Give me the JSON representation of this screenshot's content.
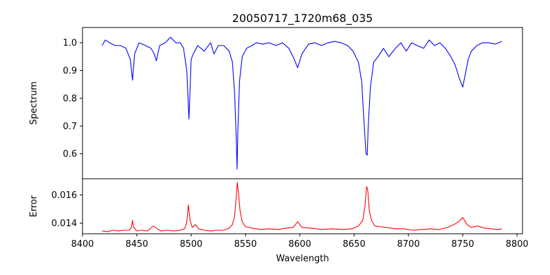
{
  "chart_data": [
    {
      "type": "line",
      "title": "20050717_1720m68_035",
      "xlabel": "",
      "ylabel": "Spectrum",
      "xlim": [
        8400,
        8805
      ],
      "ylim": [
        0.51,
        1.055
      ],
      "xticks": [
        8400,
        8450,
        8500,
        8550,
        8600,
        8650,
        8700,
        8750,
        8800
      ],
      "yticks": [
        0.6,
        0.7,
        0.8,
        0.9,
        1.0
      ],
      "ytick_labels": [
        "0.6",
        "0.7",
        "0.8",
        "0.9",
        "1.0"
      ],
      "grid": false,
      "color": "#0000ff",
      "x": [
        8418,
        8421,
        8425,
        8430,
        8435,
        8440,
        8444,
        8446,
        8448,
        8452,
        8458,
        8463,
        8466,
        8468,
        8471,
        8476,
        8481,
        8486,
        8490,
        8493,
        8496,
        8498,
        8500,
        8502,
        8506,
        8512,
        8518,
        8521,
        8525,
        8530,
        8535,
        8538,
        8540,
        8541.5,
        8542.3,
        8543,
        8544.5,
        8547,
        8551,
        8556,
        8560,
        8566,
        8572,
        8578,
        8584,
        8590,
        8595,
        8598,
        8602,
        8608,
        8614,
        8620,
        8626,
        8632,
        8638,
        8644,
        8649,
        8654,
        8657,
        8659,
        8661,
        8662.1,
        8663,
        8665,
        8668,
        8672,
        8677,
        8682,
        8688,
        8693,
        8698,
        8703,
        8708,
        8714,
        8719,
        8724,
        8729,
        8734,
        8739,
        8743,
        8747,
        8750,
        8752,
        8755,
        8758,
        8763,
        8768,
        8774,
        8780,
        8786
      ],
      "values": [
        0.99,
        1.01,
        1.0,
        0.99,
        0.99,
        0.98,
        0.94,
        0.865,
        0.96,
        1.0,
        0.99,
        0.98,
        0.96,
        0.935,
        0.99,
        1.0,
        1.02,
        1.0,
        1.0,
        0.98,
        0.9,
        0.725,
        0.94,
        0.96,
        0.99,
        0.97,
        1.0,
        0.96,
        0.99,
        0.99,
        0.97,
        0.93,
        0.82,
        0.66,
        0.545,
        0.68,
        0.86,
        0.95,
        0.98,
        0.99,
        1.0,
        0.995,
        1.0,
        0.99,
        1.0,
        0.98,
        0.94,
        0.91,
        0.96,
        0.995,
        1.0,
        0.99,
        1.0,
        1.005,
        1.0,
        0.99,
        0.97,
        0.93,
        0.86,
        0.72,
        0.6,
        0.595,
        0.7,
        0.84,
        0.93,
        0.95,
        0.98,
        0.95,
        0.98,
        1.0,
        0.97,
        1.0,
        0.99,
        0.98,
        1.01,
        0.99,
        1.0,
        0.98,
        0.95,
        0.92,
        0.87,
        0.84,
        0.88,
        0.94,
        0.97,
        0.99,
        1.0,
        1.0,
        0.995,
        1.005
      ]
    },
    {
      "type": "line",
      "title": "",
      "xlabel": "Wavelength",
      "ylabel": "Error",
      "xlim": [
        8400,
        8805
      ],
      "ylim": [
        0.01325,
        0.01715
      ],
      "xticks": [
        8400,
        8450,
        8500,
        8550,
        8600,
        8650,
        8700,
        8750,
        8800
      ],
      "yticks": [
        0.014,
        0.016
      ],
      "ytick_labels": [
        "0.014",
        "0.016"
      ],
      "grid": false,
      "color": "#ff0000",
      "x": [
        8418,
        8423,
        8428,
        8433,
        8438,
        8443,
        8445,
        8446,
        8447,
        8450,
        8455,
        8460,
        8465,
        8468,
        8472,
        8478,
        8484,
        8490,
        8494,
        8496,
        8497.5,
        8499,
        8501,
        8504,
        8507,
        8512,
        8518,
        8524,
        8530,
        8535,
        8538,
        8540,
        8541.5,
        8542.5,
        8543.5,
        8545,
        8547,
        8550,
        8556,
        8564,
        8572,
        8580,
        8588,
        8594,
        8598,
        8602,
        8610,
        8620,
        8630,
        8640,
        8648,
        8654,
        8658,
        8660,
        8661.5,
        8662.5,
        8664,
        8666,
        8669,
        8674,
        8680,
        8688,
        8696,
        8704,
        8712,
        8720,
        8728,
        8736,
        8742,
        8746,
        8750,
        8754,
        8758,
        8764,
        8770,
        8776,
        8782,
        8786
      ],
      "values": [
        0.01345,
        0.0134,
        0.0135,
        0.01345,
        0.0135,
        0.0135,
        0.0137,
        0.0142,
        0.0137,
        0.01345,
        0.0135,
        0.01345,
        0.0138,
        0.01365,
        0.01345,
        0.0135,
        0.01345,
        0.0135,
        0.0136,
        0.0141,
        0.0153,
        0.0142,
        0.0137,
        0.0139,
        0.0136,
        0.0135,
        0.01345,
        0.0135,
        0.0135,
        0.01365,
        0.0139,
        0.0145,
        0.0158,
        0.0169,
        0.0162,
        0.0149,
        0.0141,
        0.01375,
        0.01365,
        0.01355,
        0.0136,
        0.01355,
        0.01365,
        0.0137,
        0.0141,
        0.0137,
        0.01365,
        0.01355,
        0.0136,
        0.01355,
        0.0136,
        0.0138,
        0.0142,
        0.0152,
        0.0166,
        0.0164,
        0.0149,
        0.0142,
        0.0138,
        0.01375,
        0.0137,
        0.0136,
        0.0136,
        0.0135,
        0.01355,
        0.0136,
        0.01355,
        0.0137,
        0.0139,
        0.0141,
        0.0144,
        0.0139,
        0.0137,
        0.0138,
        0.01365,
        0.0136,
        0.01355,
        0.0136
      ]
    }
  ]
}
